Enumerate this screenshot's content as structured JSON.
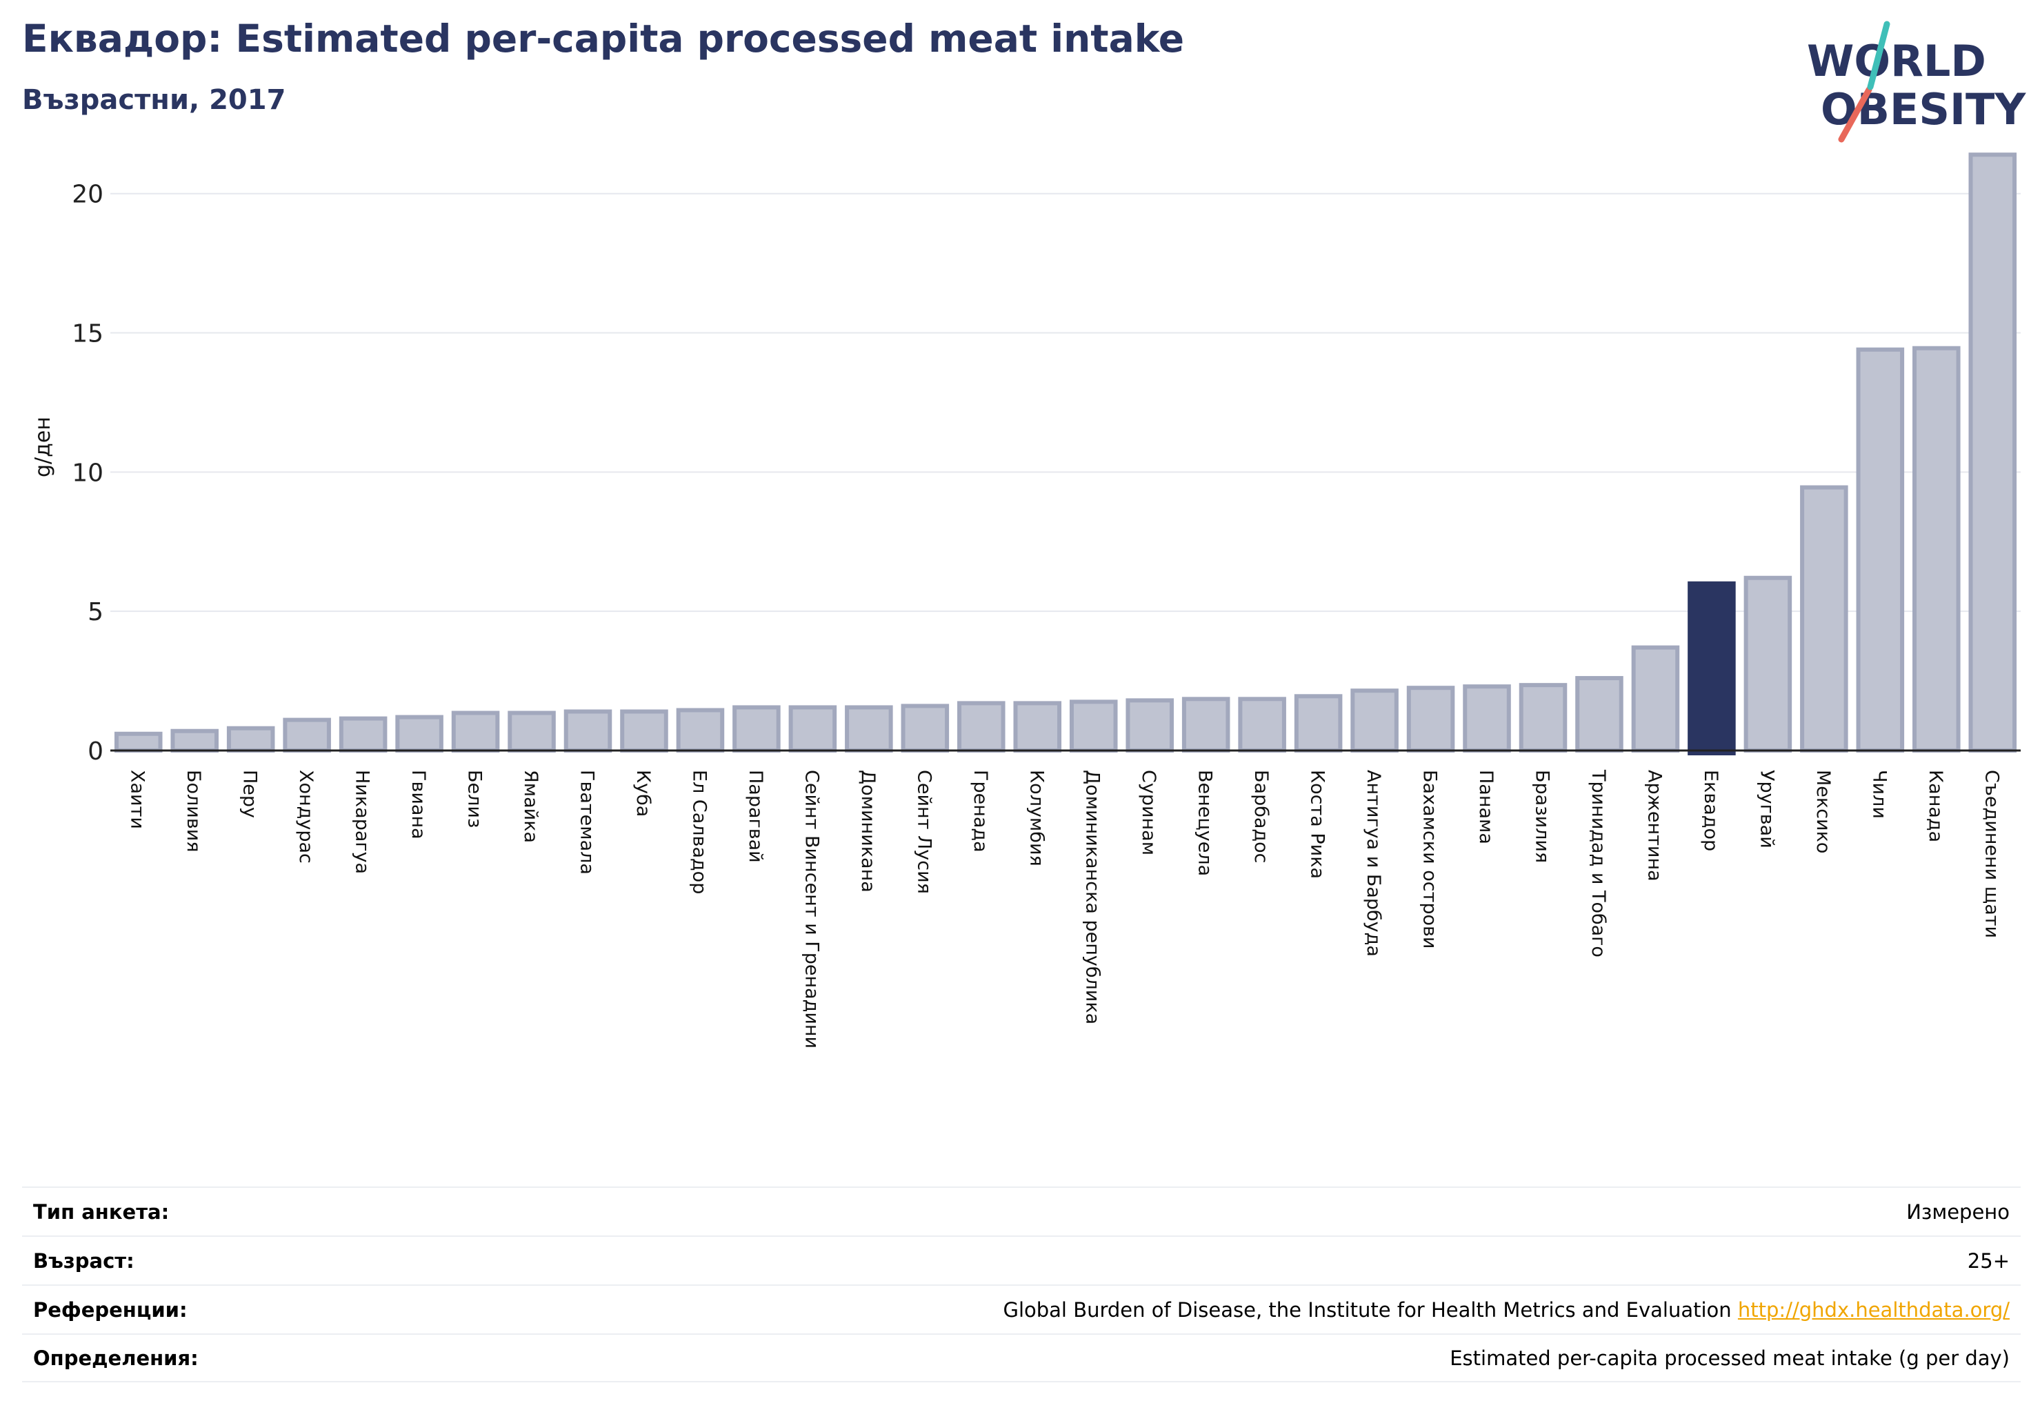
{
  "header": {
    "title": "Еквадор: Estimated per-capita processed meat intake",
    "subtitle": "Възрастни, 2017"
  },
  "logo": {
    "text_line1": "WORLD",
    "text_line2": "OBESITY",
    "colors": {
      "text": "#2a3561",
      "slash_red": "#e8685a",
      "slash_teal": "#3fbfb8"
    }
  },
  "chart_data": {
    "type": "bar",
    "ylabel": "g/ден",
    "ylim": [
      0,
      22
    ],
    "yticks": [
      0,
      5,
      10,
      15,
      20
    ],
    "grid": true,
    "categories": [
      "Хаити",
      "Боливия",
      "Перу",
      "Хондурас",
      "Никарагуа",
      "Гвиана",
      "Белиз",
      "Ямайка",
      "Гватемала",
      "Куба",
      "Ел Салвадор",
      "Парагвай",
      "Сейнт Винсент и Гренадини",
      "Доминикана",
      "Сейнт Лусия",
      "Гренада",
      "Колумбия",
      "Доминиканска република",
      "Суринам",
      "Венецуела",
      "Барбадос",
      "Коста Рика",
      "Антигуа и Барбуда",
      "Бахамски острови",
      "Панама",
      "Бразилия",
      "Тринидад и Тобаго",
      "Аржентина",
      "Еквадор",
      "Уругвай",
      "Мексико",
      "Чили",
      "Канада",
      "Съединени щати"
    ],
    "values": [
      0.6,
      0.7,
      0.8,
      1.1,
      1.15,
      1.2,
      1.35,
      1.35,
      1.4,
      1.4,
      1.45,
      1.55,
      1.55,
      1.55,
      1.6,
      1.7,
      1.7,
      1.75,
      1.8,
      1.85,
      1.85,
      1.95,
      2.15,
      2.25,
      2.3,
      2.35,
      2.6,
      3.7,
      6.0,
      6.2,
      9.45,
      14.4,
      14.45,
      21.4
    ],
    "highlight": "Еквадор",
    "colors": {
      "bar": "#bfc3d1",
      "bar_border": "#a2a8bd",
      "highlight": "#2a3561",
      "grid": "#e6e8ee",
      "axis": "#222222"
    }
  },
  "info": [
    {
      "key": "Тип анкета:",
      "value": "Измерено"
    },
    {
      "key": "Възраст:",
      "value": "25+"
    },
    {
      "key": "Референции:",
      "value": "Global Burden of Disease, the Institute for Health Metrics and Evaluation",
      "link": "http://ghdx.healthdata.org/"
    },
    {
      "key": "Определения:",
      "value": "Estimated per-capita processed meat intake (g per day)"
    }
  ]
}
